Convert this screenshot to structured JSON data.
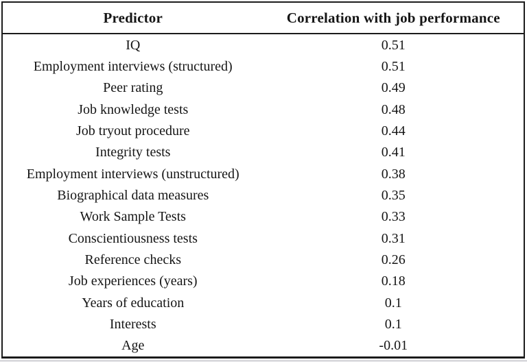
{
  "table": {
    "columns": [
      "Predictor",
      "Correlation with job performance"
    ],
    "rows": [
      {
        "predictor": "IQ",
        "correlation": "0.51"
      },
      {
        "predictor": "Employment interviews (structured)",
        "correlation": "0.51"
      },
      {
        "predictor": "Peer rating",
        "correlation": "0.49"
      },
      {
        "predictor": "Job knowledge tests",
        "correlation": "0.48"
      },
      {
        "predictor": "Job tryout procedure",
        "correlation": "0.44"
      },
      {
        "predictor": "Integrity tests",
        "correlation": "0.41"
      },
      {
        "predictor": "Employment interviews (unstructured)",
        "correlation": "0.38"
      },
      {
        "predictor": "Biographical data measures",
        "correlation": "0.35"
      },
      {
        "predictor": "Work Sample Tests",
        "correlation": "0.33"
      },
      {
        "predictor": "Conscientiousness tests",
        "correlation": "0.31"
      },
      {
        "predictor": "Reference checks",
        "correlation": "0.26"
      },
      {
        "predictor": "Job experiences (years)",
        "correlation": "0.18"
      },
      {
        "predictor": "Years of education",
        "correlation": "0.1"
      },
      {
        "predictor": "Interests",
        "correlation": "0.1"
      },
      {
        "predictor": "Age",
        "correlation": "-0.01"
      }
    ],
    "colors": {
      "border": "#1b1b1b",
      "text": "#151515",
      "background": "#ffffff",
      "secondary_rule": "#a7a7b0"
    }
  }
}
